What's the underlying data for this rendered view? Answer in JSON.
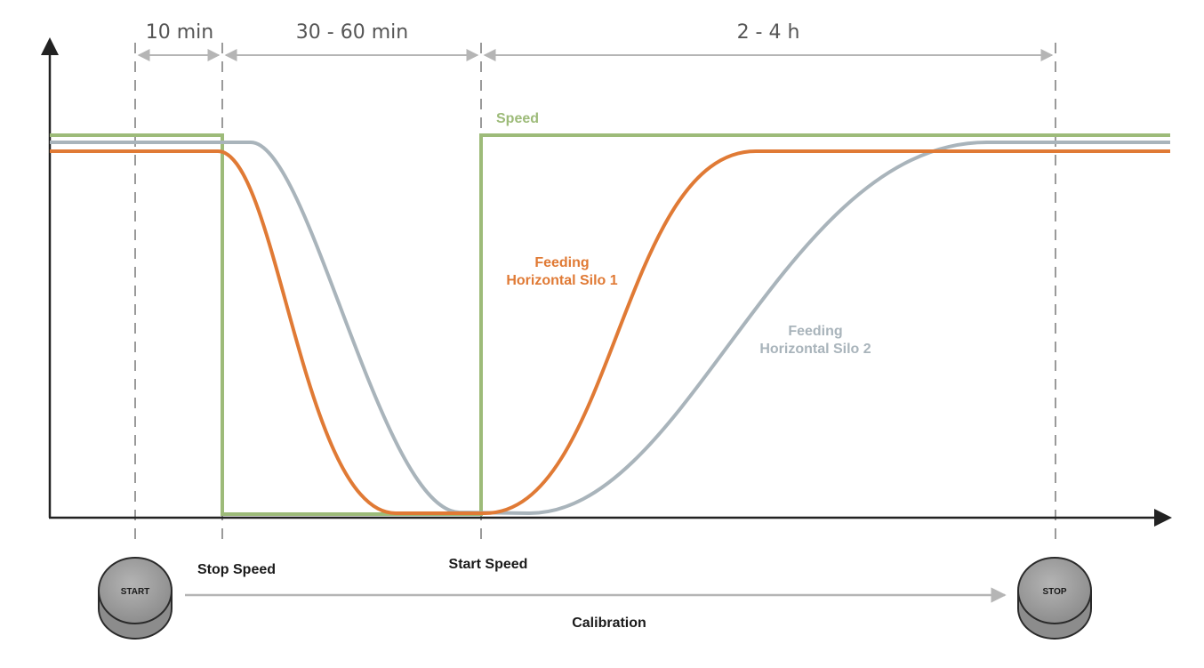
{
  "durations": {
    "d1": "10 min",
    "d2": "30 - 60 min",
    "d3": "2 - 4 h"
  },
  "curves": {
    "speed": {
      "label": "Speed",
      "color": "#9dbb79"
    },
    "silo1": {
      "label_line1": "Feeding",
      "label_line2": "Horizontal Silo 1",
      "color": "#e07a35"
    },
    "silo2": {
      "label_line1": "Feeding",
      "label_line2": "Horizontal Silo 2",
      "color": "#a9b4bb"
    }
  },
  "events": {
    "stop_speed": "Stop Speed",
    "start_speed": "Start Speed",
    "calibration": "Calibration"
  },
  "buttons": {
    "start": "START",
    "stop": "STOP"
  },
  "colors": {
    "axis": "#222222",
    "guide": "#9a9a9a",
    "button_top": "#a3a3a3",
    "button_side": "#8c8c8c"
  }
}
